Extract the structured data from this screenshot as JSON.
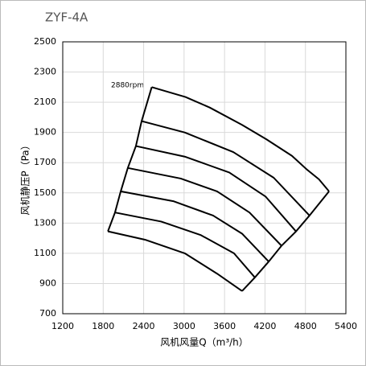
{
  "chart_data": {
    "type": "line",
    "title": "ZYF-4A",
    "xlabel": "风机风量Q（m³/h）",
    "ylabel": "风机静压P（Pa）",
    "annotation": "2880rpm",
    "color": "#000000",
    "grid": true,
    "xlim": [
      1200,
      5400
    ],
    "xticks": [
      1200,
      1800,
      2400,
      3000,
      3600,
      4200,
      4800,
      5400
    ],
    "ylim": [
      700,
      2500
    ],
    "yticks": [
      700,
      900,
      1100,
      1300,
      1500,
      1700,
      1900,
      2100,
      2300,
      2500
    ],
    "series": [
      {
        "x": [
          2520,
          3020,
          3380,
          3860,
          4220,
          4600,
          4820,
          5000,
          5150
        ],
        "values": [
          2200,
          2135,
          2065,
          1950,
          1855,
          1745,
          1655,
          1590,
          1510
        ]
      },
      {
        "x": [
          2370,
          3010,
          3730,
          4330,
          4860
        ],
        "values": [
          1975,
          1900,
          1770,
          1600,
          1350
        ]
      },
      {
        "x": [
          2285,
          3010,
          3670,
          4210,
          4660
        ],
        "values": [
          1810,
          1740,
          1635,
          1475,
          1245
        ]
      },
      {
        "x": [
          2165,
          2950,
          3490,
          3970,
          4445
        ],
        "values": [
          1665,
          1595,
          1510,
          1370,
          1150
        ]
      },
      {
        "x": [
          2060,
          2840,
          3430,
          3860,
          4255
        ],
        "values": [
          1510,
          1445,
          1350,
          1230,
          1045
        ]
      },
      {
        "x": [
          1975,
          2660,
          3250,
          3740,
          4050
        ],
        "values": [
          1370,
          1310,
          1220,
          1100,
          940
        ]
      },
      {
        "x": [
          1870,
          2420,
          3010,
          3490,
          3860
        ],
        "values": [
          1245,
          1190,
          1100,
          965,
          850
        ]
      }
    ]
  }
}
